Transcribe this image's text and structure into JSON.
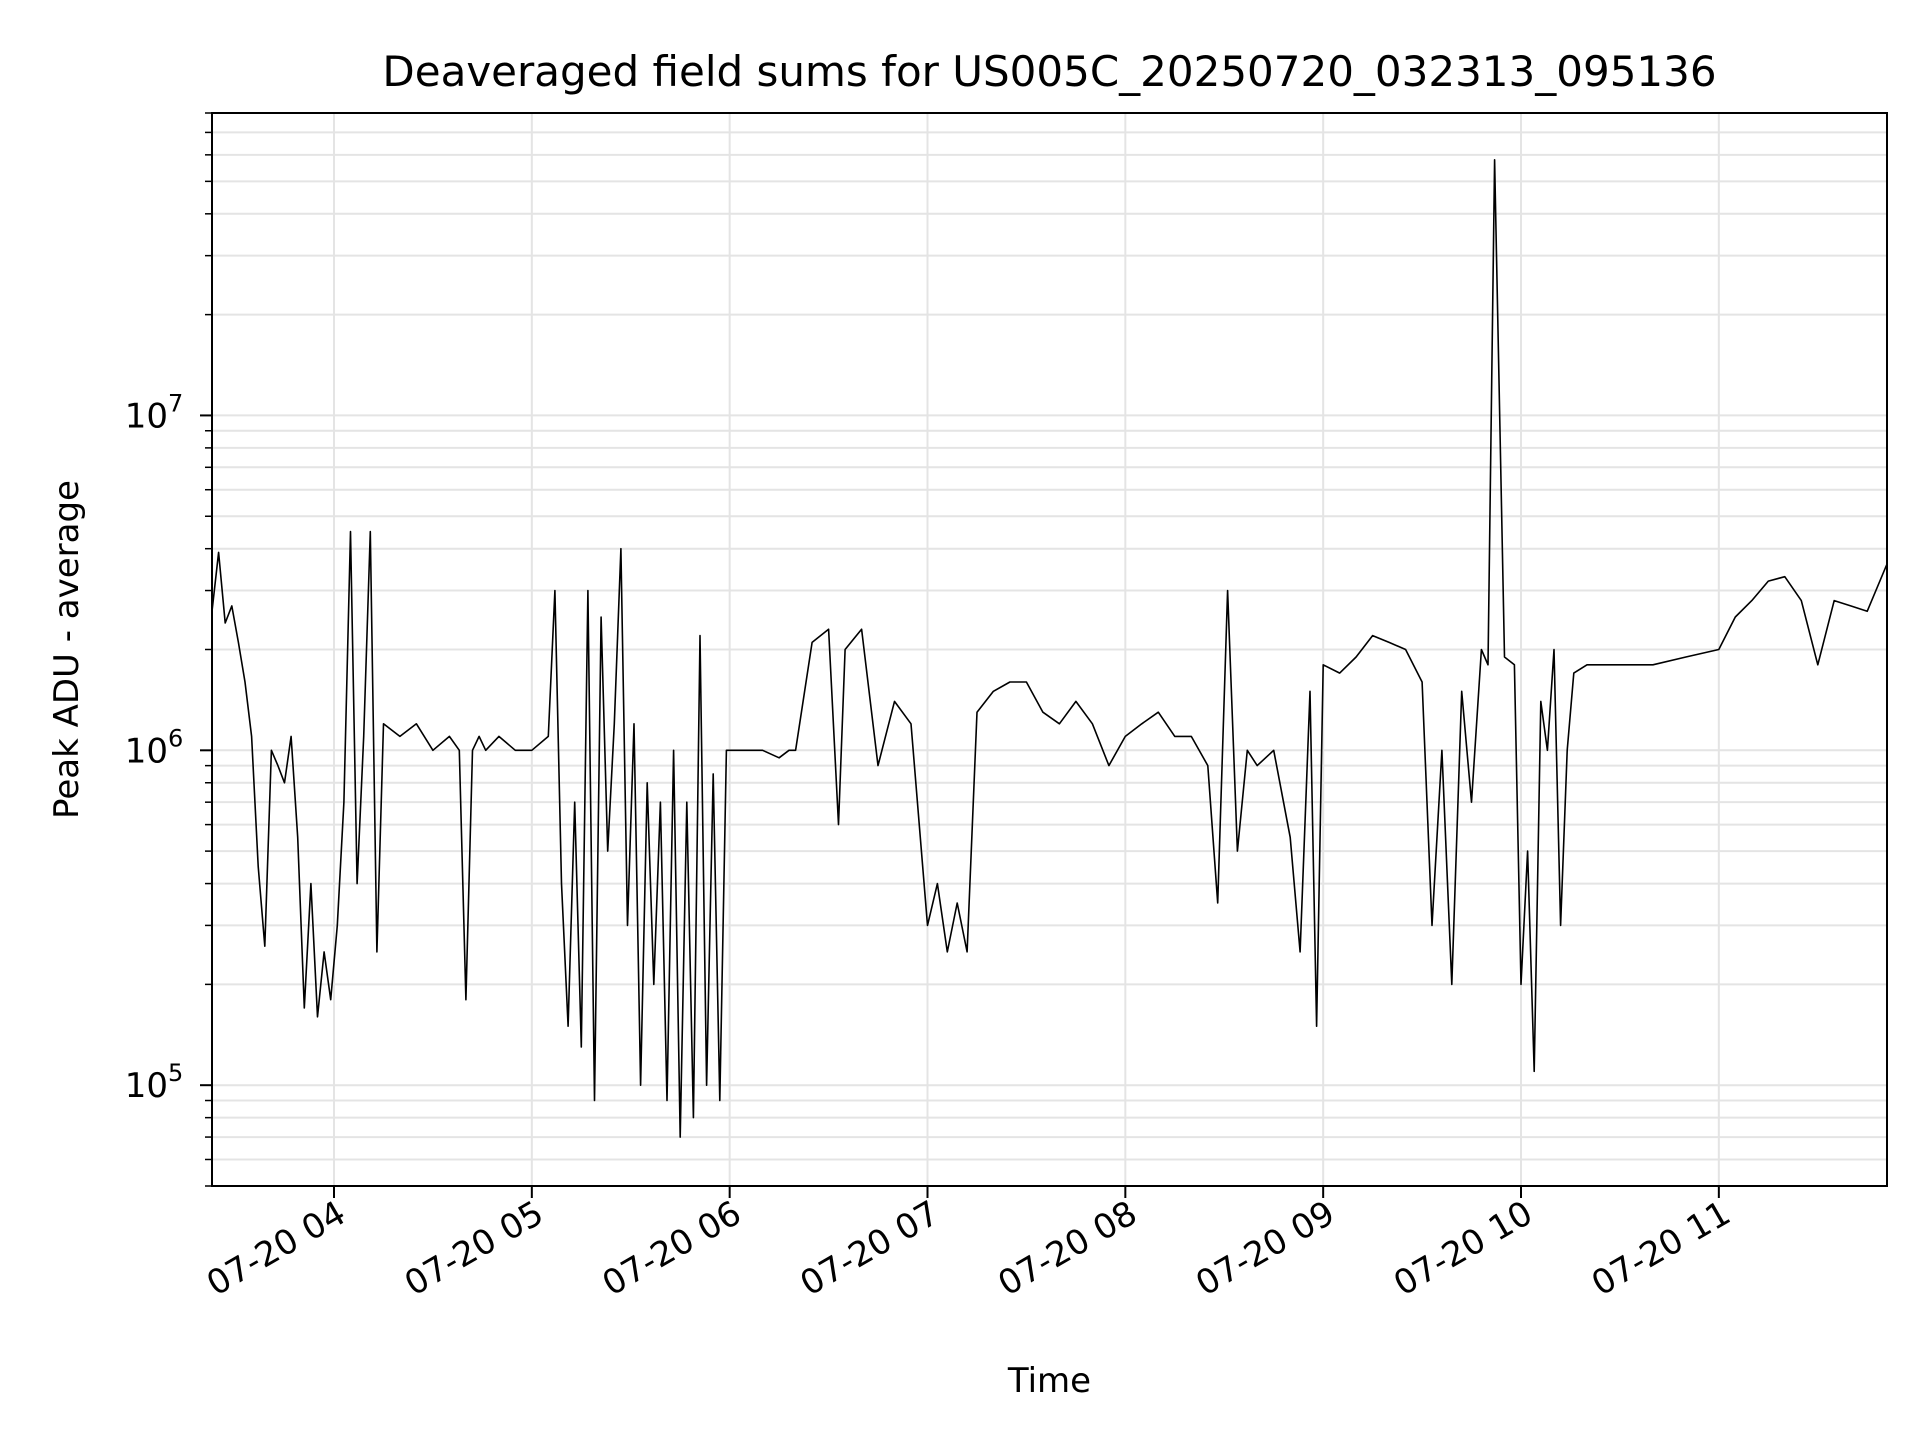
{
  "chart_data": {
    "type": "line",
    "title": "Deaveraged field sums for US005C_20250720_032313_095136",
    "xlabel": "Time",
    "ylabel": "Peak ADU - average",
    "yscale": "log",
    "xlim": [
      "2025-07-20 03:23",
      "2025-07-20 11:51"
    ],
    "ylim": [
      50000,
      80000000
    ],
    "grid": true,
    "line_color": "#000000",
    "x_ticks": [
      {
        "t": "2025-07-20 04:00",
        "label": "07-20 04"
      },
      {
        "t": "2025-07-20 05:00",
        "label": "07-20 05"
      },
      {
        "t": "2025-07-20 06:00",
        "label": "07-20 06"
      },
      {
        "t": "2025-07-20 07:00",
        "label": "07-20 07"
      },
      {
        "t": "2025-07-20 08:00",
        "label": "07-20 08"
      },
      {
        "t": "2025-07-20 09:00",
        "label": "07-20 09"
      },
      {
        "t": "2025-07-20 10:00",
        "label": "07-20 10"
      },
      {
        "t": "2025-07-20 11:00",
        "label": "07-20 11"
      }
    ],
    "y_ticks": [
      {
        "value": 100000,
        "base": "10",
        "exp": "5"
      },
      {
        "value": 1000000,
        "base": "10",
        "exp": "6"
      },
      {
        "value": 10000000,
        "base": "10",
        "exp": "7"
      }
    ],
    "series": [
      {
        "x": [
          "2025-07-20 03:23",
          "2025-07-20 03:25",
          "2025-07-20 03:27",
          "2025-07-20 03:29",
          "2025-07-20 03:31",
          "2025-07-20 03:33",
          "2025-07-20 03:35",
          "2025-07-20 03:37",
          "2025-07-20 03:39",
          "2025-07-20 03:41",
          "2025-07-20 03:43",
          "2025-07-20 03:45",
          "2025-07-20 03:47",
          "2025-07-20 03:49",
          "2025-07-20 03:51",
          "2025-07-20 03:53",
          "2025-07-20 03:55",
          "2025-07-20 03:57",
          "2025-07-20 03:59",
          "2025-07-20 04:01",
          "2025-07-20 04:03",
          "2025-07-20 04:05",
          "2025-07-20 04:07",
          "2025-07-20 04:09",
          "2025-07-20 04:11",
          "2025-07-20 04:13",
          "2025-07-20 04:15",
          "2025-07-20 04:20",
          "2025-07-20 04:25",
          "2025-07-20 04:30",
          "2025-07-20 04:35",
          "2025-07-20 04:38",
          "2025-07-20 04:40",
          "2025-07-20 04:42",
          "2025-07-20 04:44",
          "2025-07-20 04:46",
          "2025-07-20 04:50",
          "2025-07-20 04:55",
          "2025-07-20 05:00",
          "2025-07-20 05:05",
          "2025-07-20 05:07",
          "2025-07-20 05:09",
          "2025-07-20 05:11",
          "2025-07-20 05:13",
          "2025-07-20 05:15",
          "2025-07-20 05:17",
          "2025-07-20 05:19",
          "2025-07-20 05:21",
          "2025-07-20 05:23",
          "2025-07-20 05:25",
          "2025-07-20 05:27",
          "2025-07-20 05:29",
          "2025-07-20 05:31",
          "2025-07-20 05:33",
          "2025-07-20 05:35",
          "2025-07-20 05:37",
          "2025-07-20 05:39",
          "2025-07-20 05:41",
          "2025-07-20 05:43",
          "2025-07-20 05:45",
          "2025-07-20 05:47",
          "2025-07-20 05:49",
          "2025-07-20 05:51",
          "2025-07-20 05:53",
          "2025-07-20 05:55",
          "2025-07-20 05:57",
          "2025-07-20 05:59",
          "2025-07-20 06:05",
          "2025-07-20 06:10",
          "2025-07-20 06:15",
          "2025-07-20 06:18",
          "2025-07-20 06:20",
          "2025-07-20 06:25",
          "2025-07-20 06:30",
          "2025-07-20 06:33",
          "2025-07-20 06:35",
          "2025-07-20 06:40",
          "2025-07-20 06:45",
          "2025-07-20 06:50",
          "2025-07-20 06:55",
          "2025-07-20 07:00",
          "2025-07-20 07:03",
          "2025-07-20 07:06",
          "2025-07-20 07:09",
          "2025-07-20 07:12",
          "2025-07-20 07:15",
          "2025-07-20 07:20",
          "2025-07-20 07:25",
          "2025-07-20 07:30",
          "2025-07-20 07:35",
          "2025-07-20 07:40",
          "2025-07-20 07:45",
          "2025-07-20 07:50",
          "2025-07-20 07:55",
          "2025-07-20 08:00",
          "2025-07-20 08:05",
          "2025-07-20 08:10",
          "2025-07-20 08:15",
          "2025-07-20 08:20",
          "2025-07-20 08:25",
          "2025-07-20 08:28",
          "2025-07-20 08:31",
          "2025-07-20 08:34",
          "2025-07-20 08:37",
          "2025-07-20 08:40",
          "2025-07-20 08:45",
          "2025-07-20 08:50",
          "2025-07-20 08:53",
          "2025-07-20 08:56",
          "2025-07-20 08:58",
          "2025-07-20 09:00",
          "2025-07-20 09:05",
          "2025-07-20 09:10",
          "2025-07-20 09:15",
          "2025-07-20 09:20",
          "2025-07-20 09:25",
          "2025-07-20 09:30",
          "2025-07-20 09:33",
          "2025-07-20 09:36",
          "2025-07-20 09:39",
          "2025-07-20 09:42",
          "2025-07-20 09:45",
          "2025-07-20 09:48",
          "2025-07-20 09:50",
          "2025-07-20 09:52",
          "2025-07-20 09:55",
          "2025-07-20 09:58",
          "2025-07-20 10:00",
          "2025-07-20 10:02",
          "2025-07-20 10:04",
          "2025-07-20 10:06",
          "2025-07-20 10:08",
          "2025-07-20 10:10",
          "2025-07-20 10:12",
          "2025-07-20 10:14",
          "2025-07-20 10:16",
          "2025-07-20 10:20",
          "2025-07-20 10:30",
          "2025-07-20 10:40",
          "2025-07-20 10:50",
          "2025-07-20 11:00",
          "2025-07-20 11:05",
          "2025-07-20 11:10",
          "2025-07-20 11:15",
          "2025-07-20 11:20",
          "2025-07-20 11:25",
          "2025-07-20 11:30",
          "2025-07-20 11:35",
          "2025-07-20 11:40",
          "2025-07-20 11:45",
          "2025-07-20 11:51"
        ],
        "y": [
          2600000,
          3900000,
          2400000,
          2700000,
          2100000,
          1600000,
          1100000,
          450000,
          260000,
          1000000,
          900000,
          800000,
          1100000,
          550000,
          170000,
          400000,
          160000,
          250000,
          180000,
          300000,
          700000,
          4500000,
          400000,
          1100000,
          4500000,
          250000,
          1200000,
          1100000,
          1200000,
          1000000,
          1100000,
          1000000,
          180000,
          1000000,
          1100000,
          1000000,
          1100000,
          1000000,
          1000000,
          1100000,
          3000000,
          400000,
          150000,
          700000,
          130000,
          3000000,
          90000,
          2500000,
          500000,
          1200000,
          4000000,
          300000,
          1200000,
          100000,
          800000,
          200000,
          700000,
          90000,
          1000000,
          70000,
          700000,
          80000,
          2200000,
          100000,
          850000,
          90000,
          1000000,
          1000000,
          1000000,
          950000,
          1000000,
          1000000,
          2100000,
          2300000,
          600000,
          2000000,
          2300000,
          900000,
          1400000,
          1200000,
          300000,
          400000,
          250000,
          350000,
          250000,
          1300000,
          1500000,
          1600000,
          1600000,
          1300000,
          1200000,
          1400000,
          1200000,
          900000,
          1100000,
          1200000,
          1300000,
          1100000,
          1100000,
          900000,
          350000,
          3000000,
          500000,
          1000000,
          900000,
          1000000,
          550000,
          250000,
          1500000,
          150000,
          1800000,
          1700000,
          1900000,
          2200000,
          2100000,
          2000000,
          1600000,
          300000,
          1000000,
          200000,
          1500000,
          700000,
          2000000,
          1800000,
          58000000,
          1900000,
          1800000,
          200000,
          500000,
          110000,
          1400000,
          1000000,
          2000000,
          300000,
          1000000,
          1700000,
          1800000,
          1800000,
          1800000,
          1900000,
          2000000,
          2500000,
          2800000,
          3200000,
          3300000,
          2800000,
          1800000,
          2800000,
          2700000,
          2600000,
          3600000
        ]
      }
    ]
  }
}
